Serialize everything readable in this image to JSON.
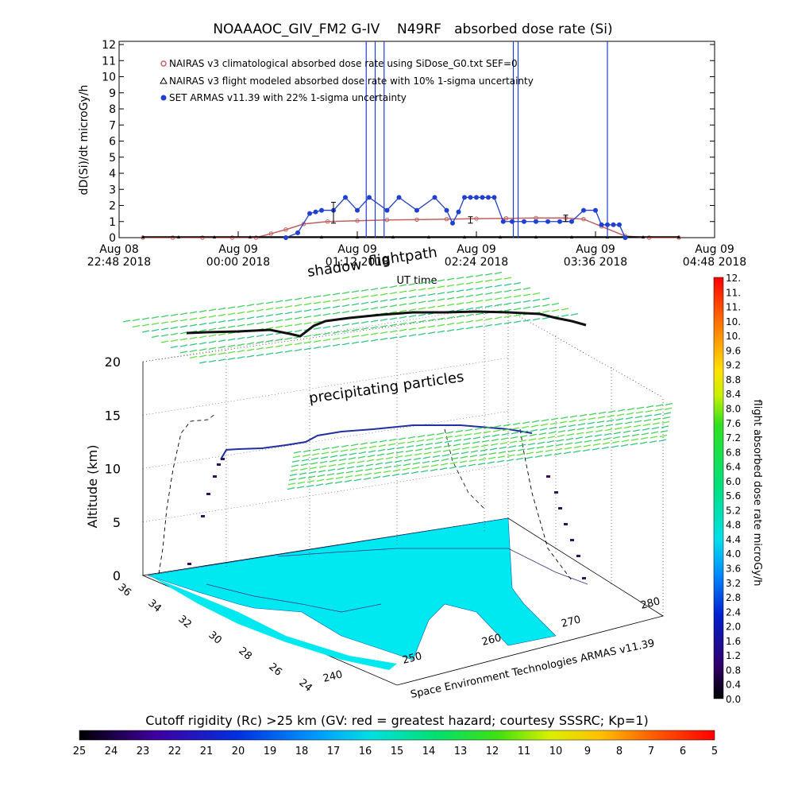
{
  "chart_data": [
    {
      "type": "line",
      "title": "NOAAAOC_GIV_FM2 G-IV    N49RF   absorbed dose rate (Si)",
      "ylabel": "dD(Si)/dt microGy/h",
      "xlabel": "UT time",
      "ylim": [
        0,
        12
      ],
      "yticks": [
        "0",
        "1",
        "2",
        "3",
        "4",
        "5",
        "6",
        "7",
        "8",
        "9",
        "10",
        "11",
        "12"
      ],
      "xticks": [
        {
          "l1": "Aug 08",
          "l2": "22:48 2018"
        },
        {
          "l1": "Aug 09",
          "l2": "00:00 2018"
        },
        {
          "l1": "Aug 09",
          "l2": "01:12 2018"
        },
        {
          "l1": "Aug 09",
          "l2": "02:24 2018"
        },
        {
          "l1": "Aug 09",
          "l2": "03:36 2018"
        },
        {
          "l1": "Aug 09",
          "l2": "04:48 2018"
        }
      ],
      "legend_placement": "top-left",
      "legend": [
        "NAIRAS v3 climatological absorbed dose rate using SiDose_G0.txt SEF=0",
        "NAIRAS v3 flight modeled absorbed dose rate with 10% 1-sigma uncertainty",
        "SET ARMAS v11.39 with 22% 1-sigma uncertainty"
      ],
      "series": [
        {
          "name": "NAIRAS v3 climatological absorbed dose rate using SiDose_G0.txt SEF=0",
          "color": "#c06060",
          "x_hours": [
            0.4,
            0.9,
            1.4,
            1.9,
            2.3,
            2.55,
            2.8,
            3.1,
            3.5,
            4.0,
            4.5,
            5.0,
            5.5,
            6.0,
            6.5,
            7.0,
            7.5,
            7.8,
            8.1,
            8.5,
            8.9,
            9.4
          ],
          "values": [
            0,
            0,
            0,
            0,
            0,
            0.25,
            0.5,
            0.85,
            1.0,
            1.05,
            1.1,
            1.12,
            1.15,
            1.18,
            1.2,
            1.22,
            1.22,
            1.15,
            0.7,
            0.1,
            0,
            0
          ]
        },
        {
          "name": "NAIRAS v3 flight modeled absorbed dose rate with 10% 1-sigma uncertainty",
          "color": "#000000",
          "x_hours": [
            0.4,
            1.0,
            1.6,
            2.2,
            2.8,
            3.4,
            4.0,
            4.6,
            5.2,
            5.8,
            6.4,
            7.0,
            7.6,
            8.2,
            8.8,
            9.4
          ],
          "values": [
            0,
            0,
            0,
            0,
            0,
            0,
            0,
            0,
            0,
            0,
            0,
            0,
            0,
            0,
            0,
            0
          ]
        },
        {
          "name": "SET ARMAS v11.39 with 22% 1-sigma uncertainty",
          "color": "#2040d0",
          "x_hours": [
            2.8,
            3.0,
            3.2,
            3.3,
            3.4,
            3.6,
            3.8,
            4.0,
            4.2,
            4.5,
            4.7,
            5.0,
            5.3,
            5.5,
            5.6,
            5.7,
            5.8,
            5.9,
            6.0,
            6.1,
            6.2,
            6.3,
            6.45,
            6.6,
            6.8,
            7.0,
            7.2,
            7.4,
            7.6,
            7.8,
            8.0,
            8.1,
            8.2,
            8.3,
            8.4,
            8.5
          ],
          "values": [
            0,
            0.3,
            1.5,
            1.6,
            1.7,
            1.7,
            2.5,
            1.7,
            2.5,
            1.7,
            2.5,
            1.7,
            2.5,
            1.7,
            0.9,
            1.6,
            2.5,
            2.5,
            2.5,
            2.5,
            2.5,
            2.5,
            1.0,
            1.0,
            1.0,
            1.0,
            1.0,
            1.0,
            1.0,
            1.7,
            1.7,
            0.8,
            0.8,
            0.8,
            0.8,
            0
          ]
        }
      ],
      "errorbars": [
        {
          "x_hours": 3.6,
          "low": 0.9,
          "high": 2.2
        },
        {
          "x_hours": 5.9,
          "low": 0.9,
          "high": 1.3
        },
        {
          "x_hours": 7.5,
          "low": 1.0,
          "high": 1.4
        }
      ]
    },
    {
      "type": "scatter",
      "subtype": "3d-flightpath",
      "zlabel": "Altitude (km)",
      "zlim": [
        0,
        20
      ],
      "zticks": [
        "0",
        "5",
        "10",
        "15",
        "20"
      ],
      "lat_ticks": [
        "36",
        "34",
        "32",
        "30",
        "28",
        "26",
        "24"
      ],
      "lon_ticks": [
        "240",
        "250",
        "260",
        "270",
        "280"
      ],
      "annotations": [
        "flightpath",
        "shadow",
        "precipitating particles",
        "Space Environment Technologies ARMAS v11.39"
      ],
      "colorbar_right": {
        "label": "flight absorbed dose rate microGy/h",
        "ticks": [
          "0.0",
          "0.4",
          "0.8",
          "1.2",
          "1.6",
          "2.0",
          "2.4",
          "2.8",
          "3.2",
          "3.6",
          "4.0",
          "4.4",
          "4.8",
          "5.2",
          "5.6",
          "6.0",
          "6.4",
          "6.8",
          "7.2",
          "7.6",
          "8.0",
          "8.4",
          "8.8",
          "9.2",
          "9.6",
          "10.",
          "10.",
          "11.",
          "11.",
          "12."
        ]
      },
      "colorbar_bottom": {
        "label": "Cutoff rigidity (Rc) >25 km (GV: red = greatest hazard; courtesy SSSRC; Kp=1)",
        "ticks": [
          "25",
          "24",
          "23",
          "22",
          "21",
          "20",
          "19",
          "18",
          "17",
          "16",
          "15",
          "14",
          "13",
          "12",
          "11",
          "10",
          "9",
          "8",
          "7",
          "6",
          "5"
        ]
      }
    }
  ]
}
